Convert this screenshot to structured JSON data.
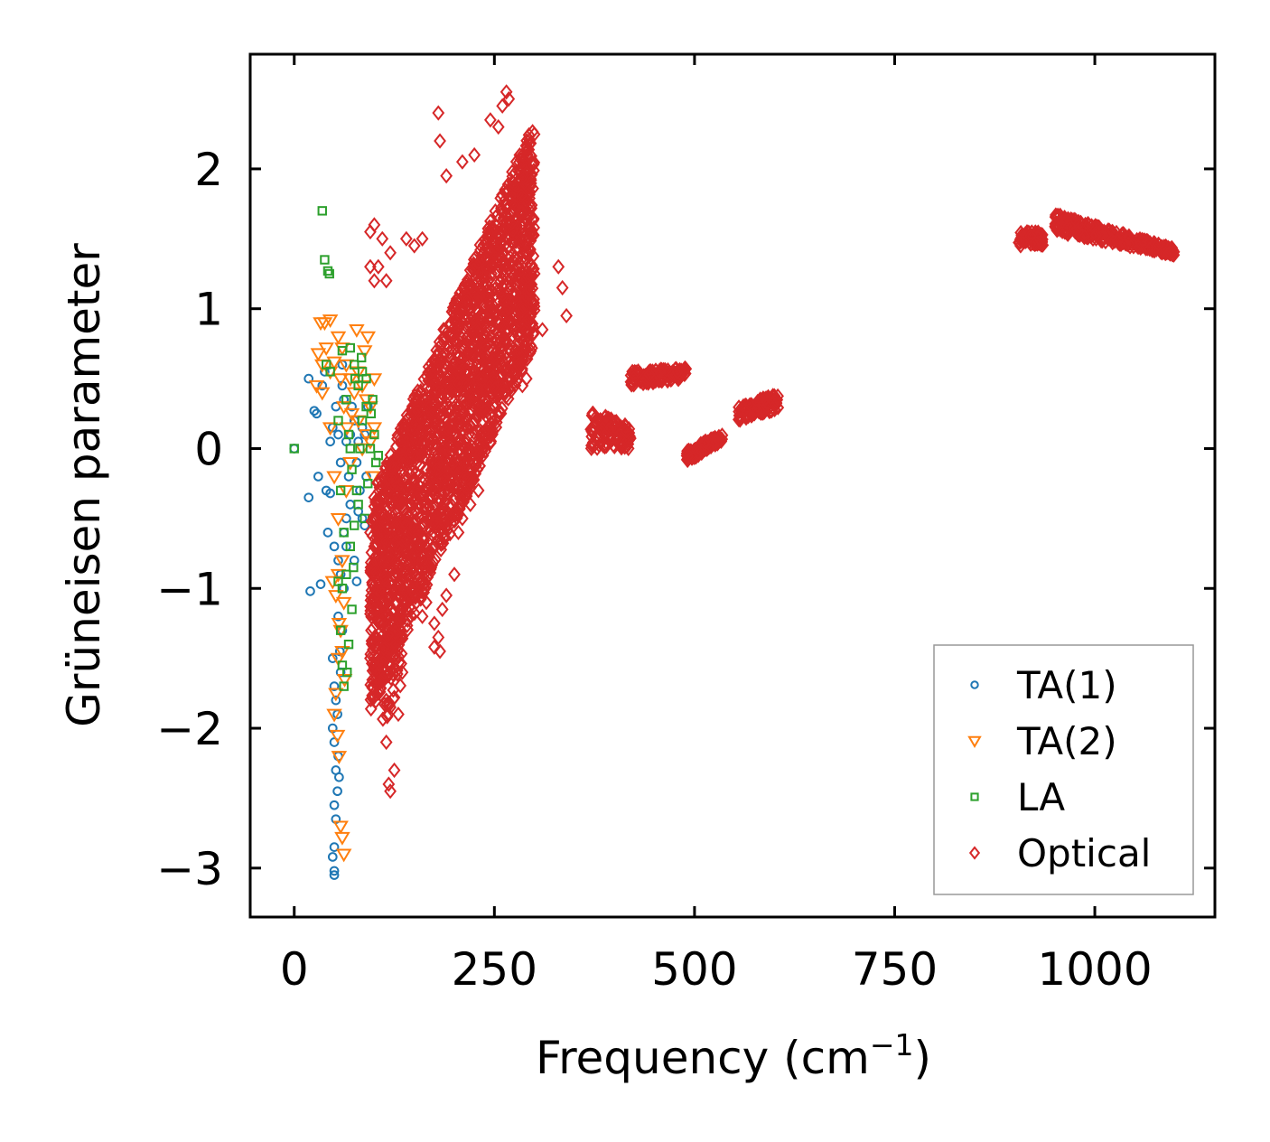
{
  "chart_data": {
    "type": "scatter",
    "title": "",
    "xlabel": "Frequency (cm",
    "xlabel_sup": "−1",
    "xlabel_close": ")",
    "ylabel": "Grüneisen parameter",
    "xlim": [
      -55,
      1150
    ],
    "ylim": [
      -3.35,
      2.82
    ],
    "xticks": [
      0,
      250,
      500,
      750,
      1000
    ],
    "xtick_labels": [
      "0",
      "250",
      "500",
      "750",
      "1000"
    ],
    "yticks": [
      -3,
      -2,
      -1,
      0,
      1,
      2
    ],
    "ytick_labels": [
      "−3",
      "−2",
      "−1",
      "0",
      "1",
      "2"
    ],
    "legend_position": "lower-right",
    "series": [
      {
        "name": "TA(1)",
        "marker": "circle",
        "color": "#1f77b4",
        "points": [
          [
            0,
            0
          ],
          [
            18,
            0.5
          ],
          [
            25,
            0.27
          ],
          [
            28,
            0.25
          ],
          [
            30,
            -0.2
          ],
          [
            35,
            0.45
          ],
          [
            38,
            0.55
          ],
          [
            40,
            -0.3
          ],
          [
            42,
            -0.6
          ],
          [
            45,
            -0.32
          ],
          [
            20,
            -1.02
          ],
          [
            33,
            -0.97
          ],
          [
            18,
            -0.35
          ],
          [
            50,
            -0.7
          ],
          [
            52,
            0.3
          ],
          [
            55,
            0.1
          ],
          [
            58,
            -0.1
          ],
          [
            60,
            0.45
          ],
          [
            62,
            0.35
          ],
          [
            65,
            -0.5
          ],
          [
            55,
            -0.8
          ],
          [
            48,
            -1.5
          ],
          [
            50,
            -1.7
          ],
          [
            52,
            -1.8
          ],
          [
            48,
            -2.0
          ],
          [
            50,
            -2.1
          ],
          [
            52,
            -2.3
          ],
          [
            54,
            -2.45
          ],
          [
            50,
            -2.55
          ],
          [
            52,
            -2.65
          ],
          [
            50,
            -2.85
          ],
          [
            48,
            -2.92
          ],
          [
            50,
            -3.02
          ],
          [
            50,
            -3.05
          ],
          [
            55,
            -2.2
          ],
          [
            58,
            -1.6
          ],
          [
            60,
            -1.3
          ],
          [
            62,
            -1.0
          ],
          [
            65,
            -0.7
          ],
          [
            68,
            -0.2
          ],
          [
            70,
            0.1
          ],
          [
            72,
            0.3
          ],
          [
            75,
            0.2
          ],
          [
            78,
            -0.1
          ],
          [
            80,
            0.05
          ],
          [
            82,
            -0.3
          ],
          [
            85,
            -0.5
          ],
          [
            88,
            0.1
          ],
          [
            90,
            -0.2
          ],
          [
            92,
            0.3
          ],
          [
            60,
            0.6
          ],
          [
            65,
            0.05
          ],
          [
            70,
            -0.4
          ],
          [
            75,
            -0.8
          ],
          [
            78,
            -0.95
          ],
          [
            80,
            -0.45
          ],
          [
            85,
            0.15
          ],
          [
            88,
            -0.55
          ],
          [
            45,
            0.05
          ],
          [
            48,
            0.15
          ],
          [
            55,
            -1.2
          ],
          [
            58,
            -0.9
          ],
          [
            62,
            -0.6
          ],
          [
            54,
            -1.9
          ],
          [
            56,
            -2.35
          ],
          [
            57,
            -1.45
          ]
        ]
      },
      {
        "name": "TA(2)",
        "marker": "triangle-down",
        "color": "#ff7f0e",
        "points": [
          [
            33,
            0.9
          ],
          [
            38,
            0.9
          ],
          [
            45,
            0.92
          ],
          [
            40,
            0.72
          ],
          [
            30,
            0.68
          ],
          [
            35,
            0.6
          ],
          [
            50,
            0.62
          ],
          [
            55,
            0.8
          ],
          [
            60,
            0.72
          ],
          [
            65,
            0.6
          ],
          [
            70,
            0.5
          ],
          [
            75,
            0.4
          ],
          [
            80,
            0.2
          ],
          [
            85,
            0.0
          ],
          [
            90,
            0.1
          ],
          [
            95,
            0.3
          ],
          [
            100,
            0.5
          ],
          [
            88,
            0.7
          ],
          [
            92,
            0.8
          ],
          [
            78,
            0.85
          ],
          [
            28,
            0.45
          ],
          [
            35,
            0.4
          ],
          [
            45,
            0.15
          ],
          [
            50,
            -0.2
          ],
          [
            55,
            -0.5
          ],
          [
            60,
            -0.8
          ],
          [
            62,
            -1.1
          ],
          [
            58,
            -1.3
          ],
          [
            55,
            -1.5
          ],
          [
            52,
            -1.75
          ],
          [
            50,
            -1.9
          ],
          [
            54,
            -2.05
          ],
          [
            56,
            -2.2
          ],
          [
            58,
            -2.7
          ],
          [
            60,
            -2.78
          ],
          [
            62,
            -2.9
          ],
          [
            55,
            -0.9
          ],
          [
            48,
            -0.95
          ],
          [
            60,
            -1.45
          ],
          [
            63,
            -1.65
          ],
          [
            65,
            -0.3
          ],
          [
            70,
            -0.1
          ],
          [
            72,
            0.25
          ],
          [
            80,
            0.55
          ],
          [
            85,
            0.45
          ],
          [
            90,
            0.35
          ],
          [
            95,
            0.05
          ],
          [
            98,
            -0.2
          ],
          [
            100,
            0.15
          ],
          [
            45,
            0.55
          ],
          [
            58,
            0.5
          ],
          [
            62,
            0.3
          ],
          [
            66,
            0.15
          ],
          [
            52,
            -1.05
          ],
          [
            56,
            -1.25
          ]
        ]
      },
      {
        "name": "LA",
        "marker": "square",
        "color": "#2ca02c",
        "points": [
          [
            0,
            0
          ],
          [
            35,
            1.7
          ],
          [
            38,
            1.35
          ],
          [
            42,
            1.27
          ],
          [
            44,
            1.25
          ],
          [
            60,
            0.7
          ],
          [
            70,
            0.72
          ],
          [
            75,
            0.6
          ],
          [
            80,
            0.45
          ],
          [
            85,
            0.55
          ],
          [
            90,
            0.3
          ],
          [
            95,
            0.0
          ],
          [
            100,
            0.1
          ],
          [
            105,
            -0.05
          ],
          [
            98,
            0.35
          ],
          [
            92,
            -0.25
          ],
          [
            88,
            -0.5
          ],
          [
            80,
            -0.4
          ],
          [
            75,
            -0.55
          ],
          [
            70,
            -0.7
          ],
          [
            65,
            -0.9
          ],
          [
            60,
            -1.0
          ],
          [
            55,
            -0.95
          ],
          [
            58,
            -1.3
          ],
          [
            60,
            -1.55
          ],
          [
            62,
            -1.7
          ],
          [
            66,
            -1.6
          ],
          [
            68,
            -1.4
          ],
          [
            72,
            -1.15
          ],
          [
            78,
            -0.3
          ],
          [
            82,
            0.0
          ],
          [
            85,
            0.2
          ],
          [
            65,
            0.35
          ],
          [
            68,
            0.1
          ],
          [
            72,
            -0.15
          ],
          [
            76,
            0.5
          ],
          [
            84,
            0.65
          ],
          [
            90,
            0.5
          ],
          [
            96,
            0.25
          ],
          [
            102,
            -0.1
          ],
          [
            55,
            0.2
          ],
          [
            58,
            -0.3
          ],
          [
            62,
            -0.6
          ],
          [
            70,
            0.0
          ],
          [
            74,
            -0.85
          ],
          [
            40,
            0.6
          ],
          [
            45,
            0.55
          ]
        ]
      },
      {
        "name": "Optical",
        "marker": "diamond",
        "color": "#d62728",
        "clusters": [
          {
            "x_range": [
              95,
              300
            ],
            "y_low": [
              -1.9,
              0.75
            ],
            "y_high": [
              -0.35,
              2.35
            ],
            "count": 2200
          },
          {
            "x_range": [
              110,
              135
            ],
            "y_low": [
              -1.4,
              -1.1
            ],
            "y_high": [
              -2.0,
              -1.7
            ],
            "count": 40
          },
          {
            "x_range": [
              370,
              420
            ],
            "y_low": [
              0.0,
              0.0
            ],
            "y_high": [
              0.3,
              0.15
            ],
            "count": 120
          },
          {
            "x_range": [
              420,
              490
            ],
            "y_low": [
              0.45,
              0.5
            ],
            "y_high": [
              0.55,
              0.58
            ],
            "count": 120
          },
          {
            "x_range": [
              490,
              535
            ],
            "y_low": [
              -0.1,
              0.05
            ],
            "y_high": [
              -0.02,
              0.12
            ],
            "count": 90
          },
          {
            "x_range": [
              555,
              605
            ],
            "y_low": [
              0.2,
              0.28
            ],
            "y_high": [
              0.3,
              0.4
            ],
            "count": 100
          },
          {
            "x_range": [
              905,
              935
            ],
            "y_low": [
              1.45,
              1.45
            ],
            "y_high": [
              1.55,
              1.55
            ],
            "count": 60
          },
          {
            "x_range": [
              950,
              1100
            ],
            "y_low": [
              1.55,
              1.38
            ],
            "y_high": [
              1.68,
              1.43
            ],
            "count": 300
          }
        ],
        "outliers": [
          [
            180,
            2.4
          ],
          [
            182,
            2.2
          ],
          [
            265,
            2.55
          ],
          [
            268,
            2.5
          ],
          [
            260,
            2.45
          ],
          [
            255,
            2.3
          ],
          [
            245,
            2.35
          ],
          [
            285,
            2.1
          ],
          [
            290,
            2.0
          ],
          [
            225,
            2.1
          ],
          [
            210,
            2.05
          ],
          [
            190,
            1.95
          ],
          [
            160,
            1.5
          ],
          [
            95,
            1.55
          ],
          [
            100,
            1.6
          ],
          [
            110,
            1.5
          ],
          [
            115,
            1.2
          ],
          [
            95,
            1.3
          ],
          [
            105,
            1.3
          ],
          [
            100,
            1.2
          ],
          [
            120,
            1.4
          ],
          [
            140,
            1.5
          ],
          [
            150,
            1.45
          ],
          [
            330,
            1.3
          ],
          [
            335,
            1.15
          ],
          [
            340,
            0.95
          ],
          [
            300,
            1.25
          ],
          [
            310,
            0.85
          ],
          [
            280,
            0.6
          ],
          [
            290,
            0.5
          ],
          [
            285,
            0.45
          ],
          [
            270,
            0.55
          ],
          [
            100,
            -0.35
          ],
          [
            95,
            -0.6
          ],
          [
            100,
            -0.7
          ],
          [
            105,
            -0.8
          ],
          [
            100,
            -1.15
          ],
          [
            95,
            -1.5
          ],
          [
            100,
            -1.55
          ],
          [
            110,
            -1.65
          ],
          [
            105,
            -1.75
          ],
          [
            115,
            -1.8
          ],
          [
            120,
            -1.85
          ],
          [
            125,
            -1.78
          ],
          [
            115,
            -2.1
          ],
          [
            118,
            -2.4
          ],
          [
            120,
            -2.45
          ],
          [
            125,
            -2.3
          ],
          [
            130,
            -1.9
          ],
          [
            135,
            -1.6
          ],
          [
            160,
            -1.2
          ],
          [
            165,
            -1.1
          ],
          [
            175,
            -1.25
          ],
          [
            180,
            -1.35
          ],
          [
            182,
            -1.45
          ],
          [
            175,
            -1.42
          ],
          [
            185,
            -1.15
          ],
          [
            190,
            -1.05
          ],
          [
            200,
            -0.9
          ],
          [
            205,
            -0.6
          ],
          [
            210,
            -0.5
          ],
          [
            220,
            -0.4
          ],
          [
            230,
            -0.3
          ],
          [
            150,
            -1.0
          ],
          [
            140,
            -1.1
          ],
          [
            130,
            -0.95
          ],
          [
            120,
            -1.05
          ],
          [
            110,
            -1.0
          ]
        ]
      }
    ]
  }
}
